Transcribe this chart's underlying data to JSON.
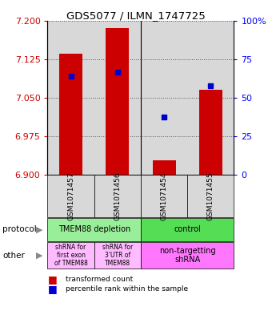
{
  "title": "GDS5077 / ILMN_1747725",
  "samples": [
    "GSM1071457",
    "GSM1071456",
    "GSM1071454",
    "GSM1071455"
  ],
  "red_values": [
    7.135,
    7.185,
    6.928,
    7.065
  ],
  "blue_values": [
    7.092,
    7.1,
    7.012,
    7.073
  ],
  "ylim_left": [
    6.9,
    7.2
  ],
  "left_ticks": [
    6.9,
    6.975,
    7.05,
    7.125,
    7.2
  ],
  "right_ticks": [
    0,
    25,
    50,
    75,
    100
  ],
  "right_tick_labels": [
    "0",
    "25",
    "50",
    "75",
    "100%"
  ],
  "bar_width": 0.5,
  "red_color": "#cc0000",
  "blue_color": "#0000cc",
  "bar_bottom": 6.9,
  "protocol_left_label": "TMEM88 depletion",
  "protocol_right_label": "control",
  "protocol_left_color": "#99ee99",
  "protocol_right_color": "#55dd55",
  "other_box1_label": "shRNA for\nfirst exon\nof TMEM88",
  "other_box2_label": "shRNA for\n3'UTR of\nTMEM88",
  "other_box3_label": "non-targetting\nshRNA",
  "other_box12_color": "#ffbbff",
  "other_box3_color": "#ff77ff",
  "legend_red": "transformed count",
  "legend_blue": "percentile rank within the sample",
  "label_protocol": "protocol",
  "label_other": "other"
}
